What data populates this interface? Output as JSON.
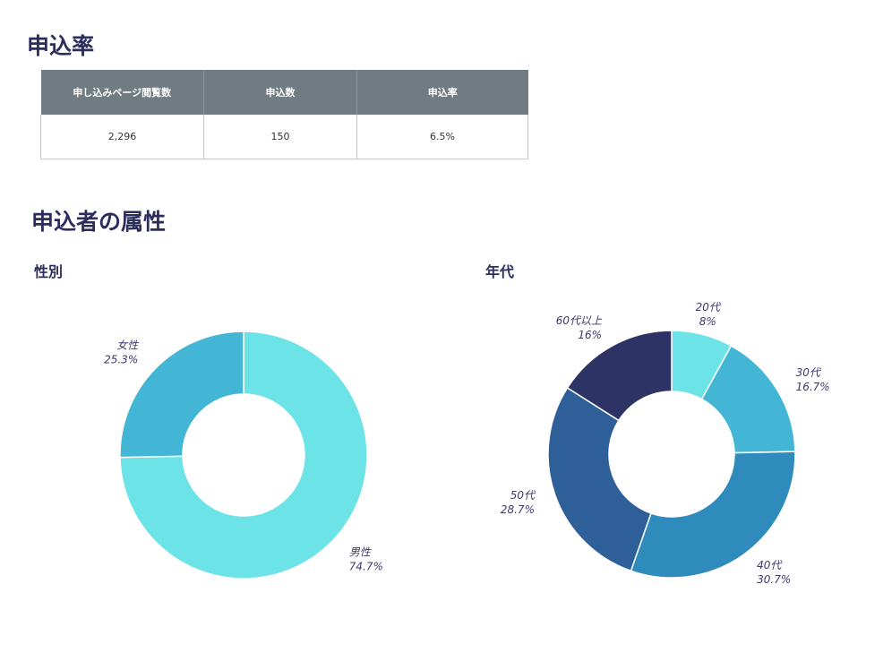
{
  "sections": {
    "rate_title": "申込率",
    "attr_title": "申込者の属性",
    "gender_title": "性別",
    "age_title": "年代"
  },
  "table": {
    "headers": [
      "申し込みページ閲覧数",
      "申込数",
      "申込率"
    ],
    "row": [
      "2,296",
      "150",
      "6.5%"
    ]
  },
  "chart_data": [
    {
      "type": "pie",
      "title": "性別",
      "donut": true,
      "slices": [
        {
          "label": "男性",
          "value": 74.7,
          "value_label": "74.7%",
          "color": "#6ce3e6"
        },
        {
          "label": "女性",
          "value": 25.3,
          "value_label": "25.3%",
          "color": "#42b6d4"
        }
      ]
    },
    {
      "type": "pie",
      "title": "年代",
      "donut": true,
      "slices": [
        {
          "label": "20代",
          "value": 8,
          "value_label": "8%",
          "color": "#6ce3e6"
        },
        {
          "label": "30代",
          "value": 16.7,
          "value_label": "16.7%",
          "color": "#42b6d4"
        },
        {
          "label": "40代",
          "value": 30.7,
          "value_label": "30.7%",
          "color": "#2e8bbb"
        },
        {
          "label": "50代",
          "value": 28.7,
          "value_label": "28.7%",
          "color": "#2e5f98"
        },
        {
          "label": "60代以上",
          "value": 16,
          "value_label": "16%",
          "color": "#2e3366"
        }
      ]
    }
  ]
}
